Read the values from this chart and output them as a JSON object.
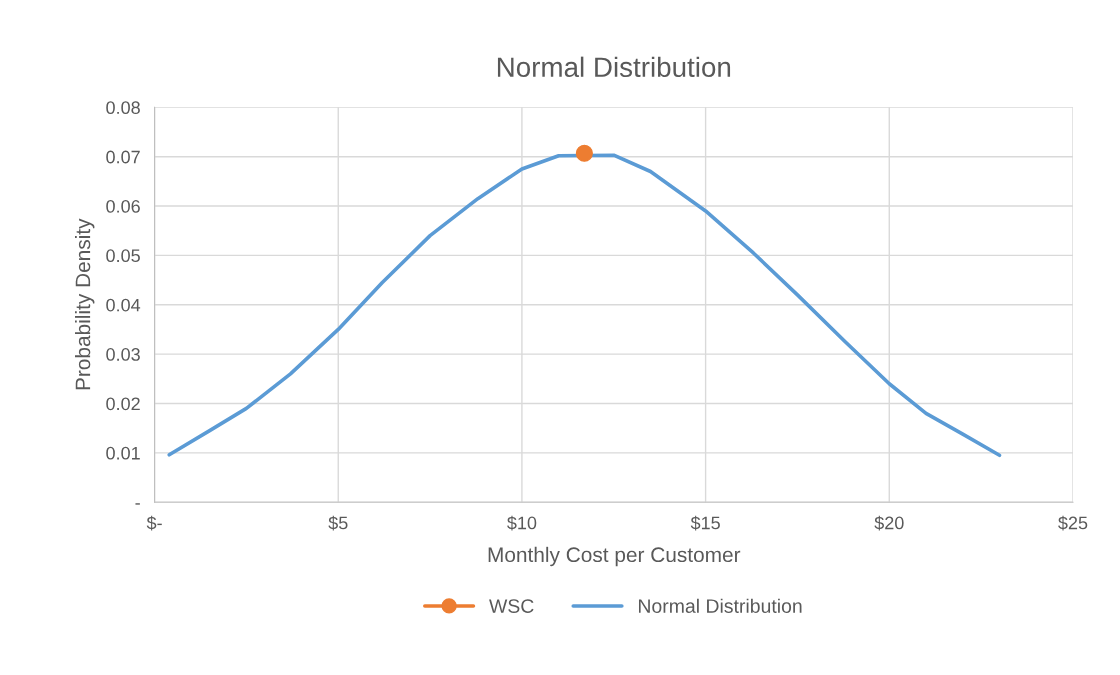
{
  "chart_data": {
    "type": "line",
    "title": "Normal Distribution",
    "xlabel": "Monthly Cost per Customer",
    "ylabel": "Probability Density",
    "xlim": [
      0,
      25
    ],
    "xticks": [
      {
        "value": 0,
        "label": "$-"
      },
      {
        "value": 5,
        "label": "$5"
      },
      {
        "value": 10,
        "label": "$10"
      },
      {
        "value": 15,
        "label": "$15"
      },
      {
        "value": 20,
        "label": "$20"
      },
      {
        "value": 25,
        "label": "$25"
      }
    ],
    "ylim": [
      0,
      0.08
    ],
    "yticks": [
      {
        "value": 0,
        "label": "-"
      },
      0.01,
      0.02,
      0.03,
      0.04,
      0.05,
      0.06,
      0.07,
      0.08
    ],
    "grid": true,
    "legend": "bottom",
    "series": [
      {
        "name": "WSC",
        "type": "scatter",
        "color": "#ed7d31",
        "marker": "circle",
        "x": [
          11.7
        ],
        "values": [
          0.0707
        ]
      },
      {
        "name": "Normal Distribution",
        "color": "#5b9bd5",
        "marker": "none",
        "x": [
          0.4,
          1.5,
          2.5,
          3.7,
          5,
          6.2,
          7.5,
          8.8,
          10,
          11,
          12.5,
          13.5,
          15,
          16.3,
          17.5,
          18.8,
          20,
          21,
          22,
          23
        ],
        "values": [
          0.0096,
          0.0145,
          0.019,
          0.026,
          0.035,
          0.0445,
          0.054,
          0.0615,
          0.0675,
          0.0702,
          0.0703,
          0.067,
          0.059,
          0.0505,
          0.042,
          0.0325,
          0.024,
          0.018,
          0.0138,
          0.0095
        ]
      }
    ]
  }
}
